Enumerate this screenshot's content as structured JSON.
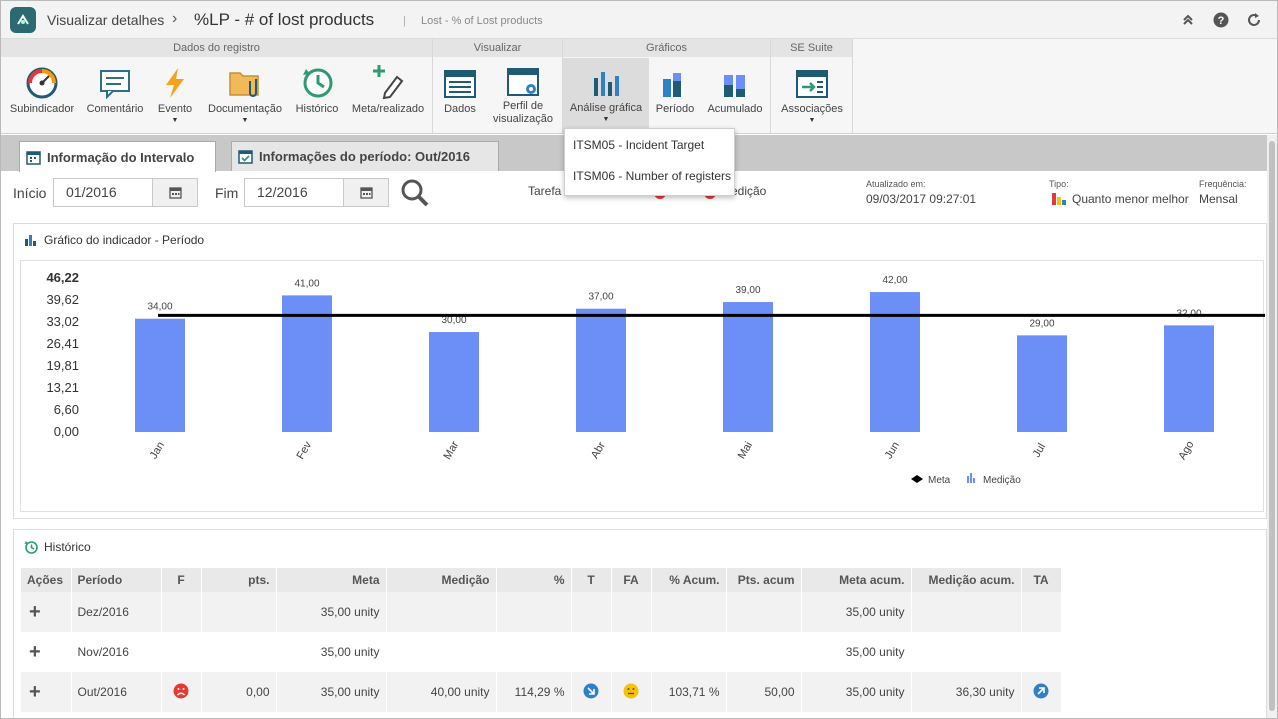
{
  "titlebar": {
    "breadcrumb": "Visualizar detalhes",
    "separator": "›",
    "title": "%LP - # of lost products",
    "divider": "|",
    "subtitle": "Lost - % of Lost products",
    "icons": [
      "collapse-icon",
      "help-icon",
      "refresh-icon"
    ]
  },
  "ribbon": {
    "groups": [
      {
        "title": "Dados do registro",
        "buttons": [
          {
            "label": "Subindicador",
            "icon": "gauge-icon"
          },
          {
            "label": "Comentário",
            "icon": "comment-icon"
          },
          {
            "label": "Evento",
            "icon": "lightning-icon",
            "dropdown": true
          },
          {
            "label": "Documentação",
            "icon": "folder-attachment-icon",
            "dropdown": true
          },
          {
            "label": "Histórico",
            "icon": "history-clock-icon"
          },
          {
            "label": "Meta/realizado",
            "icon": "pen-plus-icon"
          }
        ]
      },
      {
        "title": "Visualizar",
        "buttons": [
          {
            "label": "Dados",
            "icon": "data-table-icon"
          },
          {
            "label": "Perfil de visualização",
            "icon": "view-profile-icon"
          }
        ]
      },
      {
        "title": "Gráficos",
        "buttons": [
          {
            "label": "Análise gráfica",
            "icon": "bar-chart-icon",
            "dropdown": true,
            "active": true
          },
          {
            "label": "Período",
            "icon": "period-chart-icon"
          },
          {
            "label": "Acumulado",
            "icon": "stacked-chart-icon"
          }
        ]
      },
      {
        "title": "SE Suite",
        "buttons": [
          {
            "label": "Associações",
            "icon": "associations-icon",
            "dropdown": true
          }
        ]
      }
    ]
  },
  "dropdown": {
    "items": [
      "ITSM05 - Incident Target",
      "ITSM06 - Number of registers"
    ]
  },
  "tabs": [
    {
      "label": "Informação do Intervalo",
      "active": true
    },
    {
      "label": "Informações do período: Out/2016",
      "active": false
    }
  ],
  "filters": {
    "start_label": "Início",
    "start_value": "01/2016",
    "end_label": "Fim",
    "end_value": "12/2016",
    "tarefa_label": "Tarefa",
    "medicao_label": "Medição",
    "updated_label": "Atualizado em:",
    "updated_value": "09/03/2017 09:27:01",
    "type_label": "Tipo:",
    "type_value": "Quanto menor melhor",
    "freq_label": "Frequência:",
    "freq_value": "Mensal"
  },
  "chart_panel": {
    "title": "Gráfico do indicador - Período"
  },
  "chart_data": {
    "type": "bar",
    "categories": [
      "Jan",
      "Fev",
      "Mar",
      "Abr",
      "Mai",
      "Jun",
      "Jul",
      "Ago"
    ],
    "value_labels": [
      "34,00",
      "41,00",
      "30,00",
      "37,00",
      "39,00",
      "42,00",
      "29,00",
      "32,00"
    ],
    "series": [
      {
        "name": "Medição",
        "values": [
          34,
          41,
          30,
          37,
          39,
          42,
          29,
          32
        ]
      },
      {
        "name": "Meta",
        "values": [
          35,
          35,
          35,
          35,
          35,
          35,
          35,
          35
        ]
      }
    ],
    "y_ticks": [
      "46,22",
      "39,62",
      "33,02",
      "26,41",
      "19,81",
      "13,21",
      "6,60",
      "0,00"
    ],
    "ylim": [
      0,
      46.22
    ],
    "legend": [
      "Meta",
      "Medição"
    ],
    "legend_position": "bottom-right",
    "bar_color": "#6b8ef7",
    "line_color": "#000000"
  },
  "history": {
    "title": "Histórico",
    "columns": [
      "Ações",
      "Período",
      "F",
      "pts.",
      "Meta",
      "Medição",
      "%",
      "T",
      "FA",
      "% Acum.",
      "Pts. acum",
      "Meta acum.",
      "Medição acum.",
      "TA"
    ],
    "rows": [
      {
        "periodo": "Dez/2016",
        "f": "",
        "pts": "",
        "meta": "35,00 unity",
        "medicao": "",
        "pct": "",
        "t": "",
        "fa": "",
        "pct_acum": "",
        "pts_acum": "",
        "meta_acum": "35,00 unity",
        "medicao_acum": "",
        "ta": ""
      },
      {
        "periodo": "Nov/2016",
        "f": "",
        "pts": "",
        "meta": "35,00 unity",
        "medicao": "",
        "pct": "",
        "t": "",
        "fa": "",
        "pct_acum": "",
        "pts_acum": "",
        "meta_acum": "35,00 unity",
        "medicao_acum": "",
        "ta": ""
      },
      {
        "periodo": "Out/2016",
        "f": "sad-face-icon",
        "pts": "0,00",
        "meta": "35,00 unity",
        "medicao": "40,00 unity",
        "pct": "114,29 %",
        "t": "arrow-down-right-icon",
        "fa": "neutral-face-icon",
        "pct_acum": "103,71 %",
        "pts_acum": "50,00",
        "meta_acum": "35,00 unity",
        "medicao_acum": "36,30 unity",
        "ta": "arrow-up-right-icon"
      }
    ]
  },
  "colors": {
    "accent": "#2a6a70",
    "bar": "#6b8ef7",
    "bad": "#e53935",
    "neutral": "#f4c20d",
    "trend": "#2f80c8"
  }
}
